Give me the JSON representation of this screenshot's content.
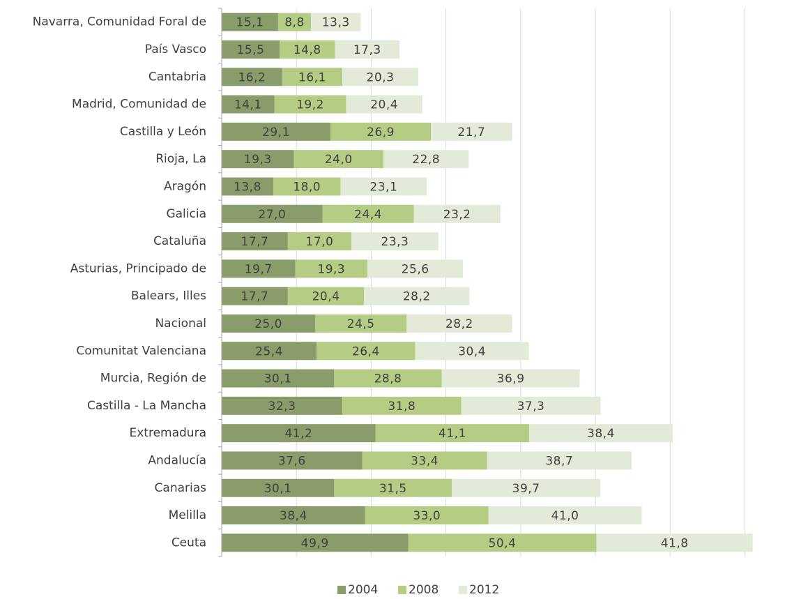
{
  "chart_data": {
    "type": "bar",
    "orientation": "horizontal",
    "stacked": true,
    "categories": [
      "Navarra, Comunidad Foral de",
      "País Vasco",
      "Cantabria",
      "Madrid, Comunidad de",
      "Castilla y León",
      "Rioja, La",
      "Aragón",
      "Galicia",
      "Cataluña",
      "Asturias, Principado de",
      "Balears, Illes",
      "Nacional",
      "Comunitat Valenciana",
      "Murcia, Región de",
      "Castilla - La Mancha",
      "Extremadura",
      "Andalucía",
      "Canarias",
      "Melilla",
      "Ceuta"
    ],
    "series": [
      {
        "name": "2004",
        "color": "#8a9c6a",
        "values": [
          15.1,
          15.5,
          16.2,
          14.1,
          29.1,
          19.3,
          13.8,
          27.0,
          17.7,
          19.7,
          17.7,
          25.0,
          25.4,
          30.1,
          32.3,
          41.2,
          37.6,
          30.1,
          38.4,
          49.9
        ],
        "labels": [
          "15,1",
          "15,5",
          "16,2",
          "14,1",
          "29,1",
          "19,3",
          "13,8",
          "27,0",
          "17,7",
          "19,7",
          "17,7",
          "25,0",
          "25,4",
          "30,1",
          "32,3",
          "41,2",
          "37,6",
          "30,1",
          "38,4",
          "49,9"
        ]
      },
      {
        "name": "2008",
        "color": "#b5cc85",
        "values": [
          8.8,
          14.8,
          16.1,
          19.2,
          26.9,
          24.0,
          18.0,
          24.4,
          17.0,
          19.3,
          20.4,
          24.5,
          26.4,
          28.8,
          31.8,
          41.1,
          33.4,
          31.5,
          33.0,
          50.4
        ],
        "labels": [
          "8,8",
          "14,8",
          "16,1",
          "19,2",
          "26,9",
          "24,0",
          "18,0",
          "24,4",
          "17,0",
          "19,3",
          "20,4",
          "24,5",
          "26,4",
          "28,8",
          "31,8",
          "41,1",
          "33,4",
          "31,5",
          "33,0",
          "50,4"
        ]
      },
      {
        "name": "2012",
        "color": "#e4ead8",
        "values": [
          13.3,
          17.3,
          20.3,
          20.4,
          21.7,
          22.8,
          23.1,
          23.2,
          23.3,
          25.6,
          28.2,
          28.2,
          30.4,
          36.9,
          37.3,
          38.4,
          38.7,
          39.7,
          41.0,
          41.8
        ],
        "labels": [
          "13,3",
          "17,3",
          "20,3",
          "20,4",
          "21,7",
          "22,8",
          "23,1",
          "23,2",
          "23,3",
          "25,6",
          "28,2",
          "28,2",
          "30,4",
          "36,9",
          "37,3",
          "38,4",
          "38,7",
          "39,7",
          "41,0",
          "41,8"
        ]
      }
    ],
    "xlim": [
      0,
      140
    ],
    "grid": "vertical",
    "legend_position": "bottom",
    "colors": {
      "grid": "#d9d9d9",
      "axis": "#a6a6a6",
      "text": "#404040"
    }
  }
}
